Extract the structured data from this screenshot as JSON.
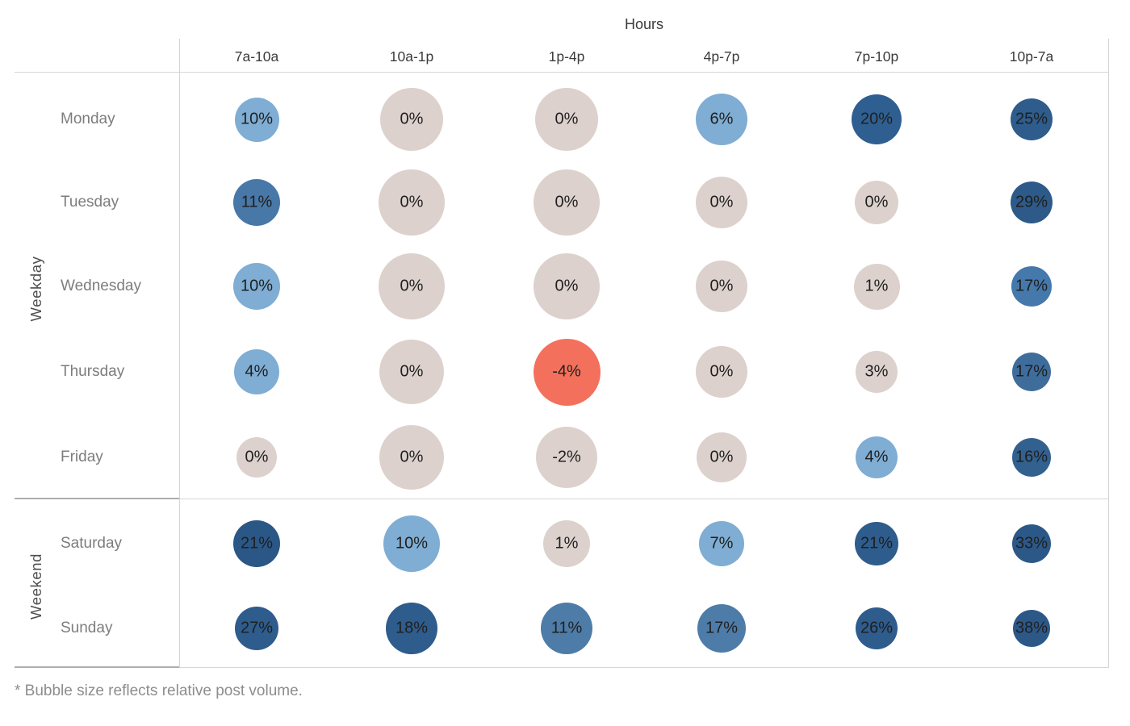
{
  "footnote": "* Bubble size reflects relative post volume.",
  "palette": {
    "negative": "#F3715C",
    "neutral": "#DCD1CD",
    "low_positive": "#7FADD3",
    "mid_positive": "#4B79A7",
    "high_positive": "#2E5C8C"
  },
  "chart_data": {
    "type": "heatmap",
    "subtype": "bubble-matrix",
    "title": "Hours",
    "xlabel": "Hours",
    "ylabel": "Weekday / Weekend",
    "size_encoding": "relative post volume",
    "color_encoding": "engagement percent (red = negative, beige = ~0, darker blue = higher)",
    "columns": [
      "7a-10a",
      "10a-1p",
      "1p-4p",
      "4p-7p",
      "7p-10p",
      "10p-7a"
    ],
    "groups": [
      {
        "label": "Weekday",
        "rows": [
          {
            "day": "Monday",
            "cells": [
              {
                "label": "10%",
                "value": 10,
                "size": 55,
                "color": "#7FADD3"
              },
              {
                "label": "0%",
                "value": 0,
                "size": 78,
                "color": "#DCD1CD"
              },
              {
                "label": "0%",
                "value": 0,
                "size": 78,
                "color": "#DCD1CD"
              },
              {
                "label": "6%",
                "value": 6,
                "size": 64,
                "color": "#7FADD3"
              },
              {
                "label": "20%",
                "value": 20,
                "size": 62,
                "color": "#2F5F90"
              },
              {
                "label": "25%",
                "value": 25,
                "size": 52,
                "color": "#2E5C8C"
              }
            ]
          },
          {
            "day": "Tuesday",
            "cells": [
              {
                "label": "11%",
                "value": 11,
                "size": 58,
                "color": "#4878A8"
              },
              {
                "label": "0%",
                "value": 0,
                "size": 82,
                "color": "#DCD1CD"
              },
              {
                "label": "0%",
                "value": 0,
                "size": 82,
                "color": "#DCD1CD"
              },
              {
                "label": "0%",
                "value": 0,
                "size": 64,
                "color": "#DCD1CD"
              },
              {
                "label": "0%",
                "value": 0,
                "size": 54,
                "color": "#DCD1CD"
              },
              {
                "label": "29%",
                "value": 29,
                "size": 52,
                "color": "#2D5A89"
              }
            ]
          },
          {
            "day": "Wednesday",
            "cells": [
              {
                "label": "10%",
                "value": 10,
                "size": 58,
                "color": "#7FADD3"
              },
              {
                "label": "0%",
                "value": 0,
                "size": 82,
                "color": "#DCD1CD"
              },
              {
                "label": "0%",
                "value": 0,
                "size": 82,
                "color": "#DCD1CD"
              },
              {
                "label": "0%",
                "value": 0,
                "size": 64,
                "color": "#DCD1CD"
              },
              {
                "label": "1%",
                "value": 1,
                "size": 57,
                "color": "#DCD1CD"
              },
              {
                "label": "17%",
                "value": 17,
                "size": 50,
                "color": "#4579AC"
              }
            ]
          },
          {
            "day": "Thursday",
            "cells": [
              {
                "label": "4%",
                "value": 4,
                "size": 56,
                "color": "#7FADD3"
              },
              {
                "label": "0%",
                "value": 0,
                "size": 80,
                "color": "#DCD1CD"
              },
              {
                "label": "-4%",
                "value": -4,
                "size": 83,
                "color": "#F3715C"
              },
              {
                "label": "0%",
                "value": 0,
                "size": 64,
                "color": "#DCD1CD"
              },
              {
                "label": "3%",
                "value": 3,
                "size": 52,
                "color": "#DCD1CD"
              },
              {
                "label": "17%",
                "value": 17,
                "size": 48,
                "color": "#3E6D9C"
              }
            ]
          },
          {
            "day": "Friday",
            "cells": [
              {
                "label": "0%",
                "value": 0,
                "size": 50,
                "color": "#DCD1CD"
              },
              {
                "label": "0%",
                "value": 0,
                "size": 80,
                "color": "#DCD1CD"
              },
              {
                "label": "-2%",
                "value": -2,
                "size": 76,
                "color": "#DCD1CD"
              },
              {
                "label": "0%",
                "value": 0,
                "size": 62,
                "color": "#DCD1CD"
              },
              {
                "label": "4%",
                "value": 4,
                "size": 52,
                "color": "#7FADD3"
              },
              {
                "label": "16%",
                "value": 16,
                "size": 48,
                "color": "#33618F"
              }
            ]
          }
        ]
      },
      {
        "label": "Weekend",
        "rows": [
          {
            "day": "Saturday",
            "cells": [
              {
                "label": "21%",
                "value": 21,
                "size": 58,
                "color": "#2B5786"
              },
              {
                "label": "10%",
                "value": 10,
                "size": 70,
                "color": "#7FADD3"
              },
              {
                "label": "1%",
                "value": 1,
                "size": 58,
                "color": "#DCD1CD"
              },
              {
                "label": "7%",
                "value": 7,
                "size": 56,
                "color": "#7FADD3"
              },
              {
                "label": "21%",
                "value": 21,
                "size": 54,
                "color": "#2E5C8C"
              },
              {
                "label": "33%",
                "value": 33,
                "size": 48,
                "color": "#2C5888"
              }
            ]
          },
          {
            "day": "Sunday",
            "cells": [
              {
                "label": "27%",
                "value": 27,
                "size": 54,
                "color": "#2E5C8C"
              },
              {
                "label": "18%",
                "value": 18,
                "size": 64,
                "color": "#2E5C8C"
              },
              {
                "label": "11%",
                "value": 11,
                "size": 64,
                "color": "#4E7CA8"
              },
              {
                "label": "17%",
                "value": 17,
                "size": 60,
                "color": "#4E7CA8"
              },
              {
                "label": "26%",
                "value": 26,
                "size": 52,
                "color": "#2E5C8C"
              },
              {
                "label": "38%",
                "value": 38,
                "size": 46,
                "color": "#2C5888"
              }
            ]
          }
        ]
      }
    ]
  }
}
